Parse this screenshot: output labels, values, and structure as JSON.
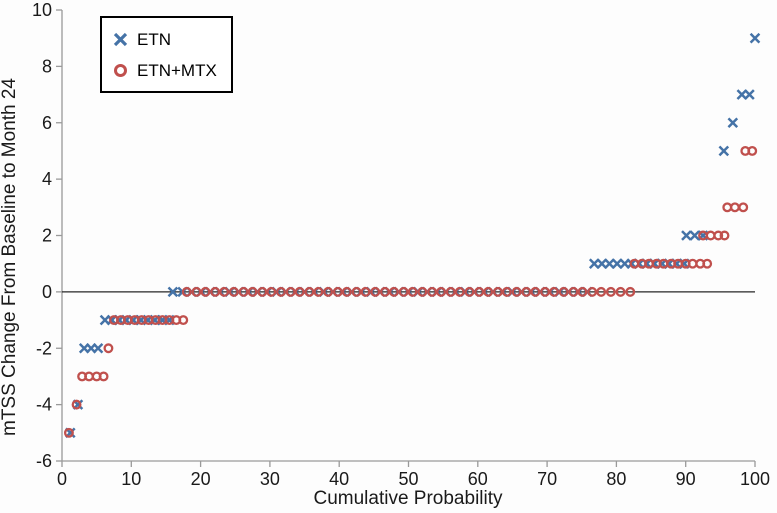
{
  "chart_data": {
    "type": "scatter",
    "title": "",
    "xlabel": "Cumulative Probability",
    "ylabel": "mTSS Change From Baseline to Month 24",
    "xlim": [
      0,
      100
    ],
    "ylim": [
      -6,
      10
    ],
    "x_ticks": [
      0,
      10,
      20,
      30,
      40,
      50,
      60,
      70,
      80,
      90,
      100
    ],
    "y_ticks": [
      -6,
      -4,
      -2,
      0,
      2,
      4,
      6,
      8,
      10
    ],
    "grid": false,
    "zero_line": true,
    "legend_position": "top-left",
    "axis_color": "#9a9a9a",
    "zero_line_color": "#262626",
    "series": [
      {
        "name": "ETN",
        "marker": "x",
        "color": "#4573A7",
        "points": [
          [
            1.2,
            -5
          ],
          [
            2.3,
            -4
          ],
          [
            3.2,
            -2
          ],
          [
            4.2,
            -2
          ],
          [
            5.2,
            -2
          ],
          [
            6.2,
            -1
          ],
          [
            7.2,
            -1
          ],
          [
            8.3,
            -1
          ],
          [
            9.3,
            -1
          ],
          [
            10.3,
            -1
          ],
          [
            11.4,
            -1
          ],
          [
            12.4,
            -1
          ],
          [
            13.4,
            -1
          ],
          [
            14.5,
            -1
          ],
          [
            15.5,
            -1
          ],
          [
            16,
            0
          ],
          [
            17.4,
            0
          ],
          [
            18.7,
            0
          ],
          [
            20.1,
            0
          ],
          [
            21.4,
            0
          ],
          [
            22.8,
            0
          ],
          [
            24.2,
            0
          ],
          [
            25.5,
            0
          ],
          [
            26.9,
            0
          ],
          [
            28.2,
            0
          ],
          [
            29.6,
            0
          ],
          [
            31,
            0
          ],
          [
            32.3,
            0
          ],
          [
            33.7,
            0
          ],
          [
            35,
            0
          ],
          [
            36.4,
            0
          ],
          [
            37.8,
            0
          ],
          [
            39.1,
            0
          ],
          [
            40.5,
            0
          ],
          [
            41.8,
            0
          ],
          [
            43.2,
            0
          ],
          [
            44.6,
            0
          ],
          [
            45.9,
            0
          ],
          [
            47.3,
            0
          ],
          [
            48.6,
            0
          ],
          [
            50,
            0
          ],
          [
            51.4,
            0
          ],
          [
            52.7,
            0
          ],
          [
            54.1,
            0
          ],
          [
            55.4,
            0
          ],
          [
            56.8,
            0
          ],
          [
            58.2,
            0
          ],
          [
            59.5,
            0
          ],
          [
            60.9,
            0
          ],
          [
            62.2,
            0
          ],
          [
            63.6,
            0
          ],
          [
            65,
            0
          ],
          [
            66.3,
            0
          ],
          [
            67.7,
            0
          ],
          [
            69,
            0
          ],
          [
            70.4,
            0
          ],
          [
            71.8,
            0
          ],
          [
            73.1,
            0
          ],
          [
            74.5,
            0
          ],
          [
            75.8,
            0
          ],
          [
            76.8,
            1
          ],
          [
            77.9,
            1
          ],
          [
            79,
            1
          ],
          [
            80.1,
            1
          ],
          [
            81.2,
            1
          ],
          [
            82.2,
            1
          ],
          [
            83.3,
            1
          ],
          [
            84.4,
            1
          ],
          [
            85.5,
            1
          ],
          [
            86.6,
            1
          ],
          [
            87.6,
            1
          ],
          [
            88.7,
            1
          ],
          [
            89.8,
            1
          ],
          [
            90.1,
            2
          ],
          [
            91.3,
            2
          ],
          [
            92.5,
            2
          ],
          [
            95.5,
            5
          ],
          [
            96.8,
            6
          ],
          [
            98.1,
            7
          ],
          [
            99.2,
            7
          ],
          [
            100,
            9
          ]
        ]
      },
      {
        "name": "ETN+MTX",
        "marker": "o",
        "color": "#C0504D",
        "points": [
          [
            1,
            -5
          ],
          [
            2.1,
            -4
          ],
          [
            2.9,
            -3
          ],
          [
            3.9,
            -3
          ],
          [
            5,
            -3
          ],
          [
            6,
            -3
          ],
          [
            6.7,
            -2
          ],
          [
            7.5,
            -1
          ],
          [
            8.5,
            -1
          ],
          [
            9.5,
            -1
          ],
          [
            10.5,
            -1
          ],
          [
            11.5,
            -1
          ],
          [
            12.5,
            -1
          ],
          [
            13.5,
            -1
          ],
          [
            14.5,
            -1
          ],
          [
            15.5,
            -1
          ],
          [
            16.5,
            -1
          ],
          [
            17.5,
            -1
          ],
          [
            18,
            0
          ],
          [
            19.4,
            0
          ],
          [
            20.7,
            0
          ],
          [
            22.1,
            0
          ],
          [
            23.4,
            0
          ],
          [
            24.8,
            0
          ],
          [
            26.2,
            0
          ],
          [
            27.5,
            0
          ],
          [
            28.9,
            0
          ],
          [
            30.2,
            0
          ],
          [
            31.6,
            0
          ],
          [
            33,
            0
          ],
          [
            34.3,
            0
          ],
          [
            35.7,
            0
          ],
          [
            37,
            0
          ],
          [
            38.4,
            0
          ],
          [
            39.8,
            0
          ],
          [
            41.1,
            0
          ],
          [
            42.5,
            0
          ],
          [
            43.8,
            0
          ],
          [
            45.2,
            0
          ],
          [
            46.6,
            0
          ],
          [
            47.9,
            0
          ],
          [
            49.3,
            0
          ],
          [
            50.6,
            0
          ],
          [
            52,
            0
          ],
          [
            53.4,
            0
          ],
          [
            54.7,
            0
          ],
          [
            56.1,
            0
          ],
          [
            57.4,
            0
          ],
          [
            58.8,
            0
          ],
          [
            60.2,
            0
          ],
          [
            61.5,
            0
          ],
          [
            62.9,
            0
          ],
          [
            64.2,
            0
          ],
          [
            65.6,
            0
          ],
          [
            67,
            0
          ],
          [
            68.3,
            0
          ],
          [
            69.7,
            0
          ],
          [
            71,
            0
          ],
          [
            72.4,
            0
          ],
          [
            73.8,
            0
          ],
          [
            75.1,
            0
          ],
          [
            76.5,
            0
          ],
          [
            77.8,
            0
          ],
          [
            79.2,
            0
          ],
          [
            80.6,
            0
          ],
          [
            82,
            0
          ],
          [
            82.6,
            1
          ],
          [
            83.7,
            1
          ],
          [
            84.7,
            1
          ],
          [
            85.8,
            1
          ],
          [
            86.8,
            1
          ],
          [
            87.9,
            1
          ],
          [
            88.9,
            1
          ],
          [
            90,
            1
          ],
          [
            91,
            1
          ],
          [
            92.1,
            1
          ],
          [
            93.1,
            1
          ],
          [
            92.5,
            2
          ],
          [
            93.6,
            2
          ],
          [
            94.7,
            2
          ],
          [
            95.6,
            2
          ],
          [
            96,
            3
          ],
          [
            97.1,
            3
          ],
          [
            98.3,
            3
          ],
          [
            98.6,
            5
          ],
          [
            99.6,
            5
          ]
        ]
      }
    ]
  }
}
